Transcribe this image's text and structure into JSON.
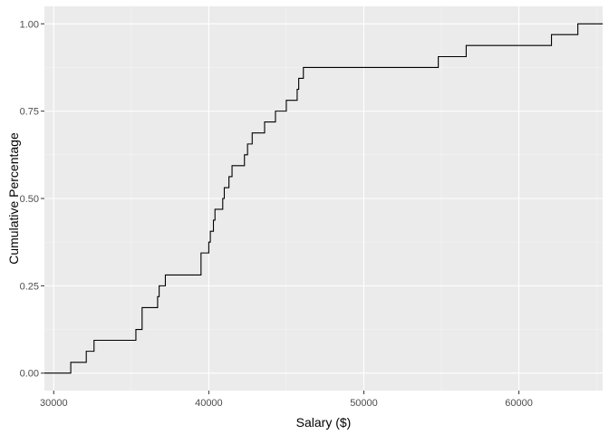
{
  "chart_data": {
    "type": "line",
    "subtype": "ecdf-step",
    "xlabel": "Salary ($)",
    "ylabel": "Cumulative Percentage",
    "xlim": [
      29400,
      65400
    ],
    "ylim": [
      -0.05,
      1.05
    ],
    "x_ticks": [
      30000,
      40000,
      50000,
      60000
    ],
    "x_tick_labels": [
      "30000",
      "40000",
      "50000",
      "60000"
    ],
    "y_ticks": [
      0,
      0.25,
      0.5,
      0.75,
      1
    ],
    "y_tick_labels": [
      "0.00",
      "0.25",
      "0.50",
      "0.75",
      "1.00"
    ],
    "grid": true,
    "legend": "none",
    "colors": {
      "panel": "#EBEBEB",
      "grid_major": "#FFFFFF",
      "line": "#000000"
    },
    "series": [
      {
        "points": [
          [
            29400,
            0.0
          ],
          [
            31100,
            0.031
          ],
          [
            32100,
            0.0625
          ],
          [
            32600,
            0.094
          ],
          [
            35300,
            0.125
          ],
          [
            35700,
            0.1875
          ],
          [
            36700,
            0.219
          ],
          [
            36800,
            0.25
          ],
          [
            37200,
            0.281
          ],
          [
            39500,
            0.344
          ],
          [
            40000,
            0.375
          ],
          [
            40100,
            0.406
          ],
          [
            40300,
            0.438
          ],
          [
            40400,
            0.469
          ],
          [
            40900,
            0.5
          ],
          [
            41000,
            0.531
          ],
          [
            41300,
            0.5625
          ],
          [
            41500,
            0.594
          ],
          [
            42300,
            0.625
          ],
          [
            42500,
            0.656
          ],
          [
            42800,
            0.6875
          ],
          [
            43600,
            0.719
          ],
          [
            44300,
            0.75
          ],
          [
            45000,
            0.781
          ],
          [
            45700,
            0.8125
          ],
          [
            45800,
            0.844
          ],
          [
            46100,
            0.875
          ],
          [
            54800,
            0.906
          ],
          [
            56600,
            0.938
          ],
          [
            62100,
            0.969
          ],
          [
            63800,
            1.0
          ],
          [
            65400,
            1.0
          ]
        ]
      }
    ]
  }
}
